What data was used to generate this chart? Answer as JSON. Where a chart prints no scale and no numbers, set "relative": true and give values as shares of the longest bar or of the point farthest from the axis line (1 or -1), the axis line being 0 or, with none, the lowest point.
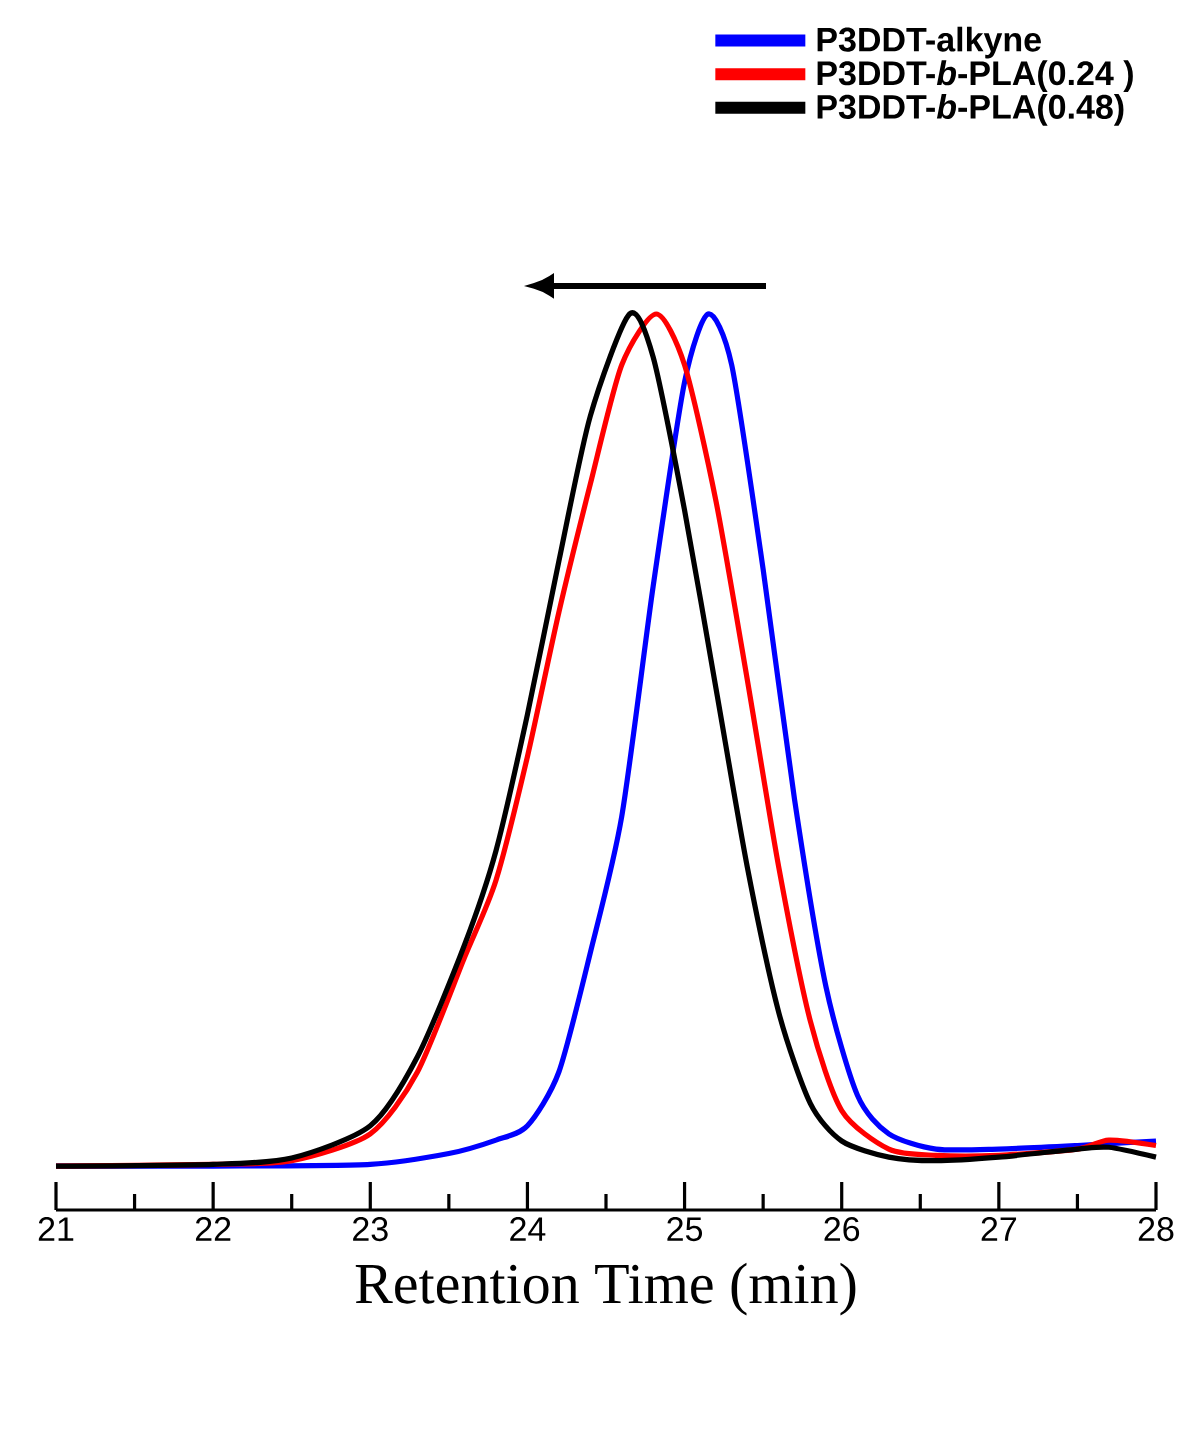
{
  "chart_data": {
    "type": "line",
    "xlabel": "Retention Time (min)",
    "relative": true,
    "legend": "top right",
    "xlim": [
      21,
      28
    ],
    "xticks": [
      21,
      22,
      23,
      24,
      25,
      26,
      27,
      28
    ],
    "series": [
      {
        "name": "P3DDT-alkyne",
        "color": "#0000ff",
        "x": [
          21,
          22,
          23,
          23.5,
          23.8,
          24.0,
          24.2,
          24.4,
          24.6,
          24.8,
          25.0,
          25.15,
          25.3,
          25.5,
          25.7,
          25.9,
          26.1,
          26.3,
          26.6,
          27,
          27.5,
          28
        ],
        "values": [
          0.049,
          0.049,
          0.051,
          0.063,
          0.078,
          0.094,
          0.154,
          0.287,
          0.439,
          0.696,
          0.924,
          1,
          0.943,
          0.715,
          0.458,
          0.249,
          0.128,
          0.085,
          0.068,
          0.068,
          0.072,
          0.077
        ]
      },
      {
        "name": "P3DDT-*b*-PLA(0.24 )",
        "color": "#ff0000",
        "x": [
          21,
          22,
          22.5,
          23,
          23.3,
          23.6,
          23.8,
          24.0,
          24.2,
          24.4,
          24.6,
          24.82,
          25.0,
          25.2,
          25.4,
          25.6,
          25.8,
          26.0,
          26.3,
          26.6,
          27,
          27.5,
          27.7,
          28
        ],
        "values": [
          0.049,
          0.051,
          0.055,
          0.085,
          0.154,
          0.282,
          0.368,
          0.506,
          0.667,
          0.81,
          0.943,
          1,
          0.943,
          0.791,
          0.591,
          0.382,
          0.211,
          0.111,
          0.068,
          0.061,
          0.061,
          0.068,
          0.078,
          0.072
        ]
      },
      {
        "name": "P3DDT-*b*-PLA(0.48)",
        "color": "#000000",
        "x": [
          21,
          22,
          22.5,
          23,
          23.3,
          23.6,
          23.8,
          24.0,
          24.2,
          24.4,
          24.65,
          24.8,
          25.0,
          25.2,
          25.4,
          25.6,
          25.8,
          26.0,
          26.3,
          26.6,
          27,
          27.5,
          27.7,
          28
        ],
        "values": [
          0.049,
          0.051,
          0.058,
          0.094,
          0.171,
          0.296,
          0.401,
          0.553,
          0.724,
          0.886,
          1,
          0.952,
          0.781,
          0.582,
          0.382,
          0.22,
          0.119,
          0.077,
          0.059,
          0.055,
          0.059,
          0.068,
          0.07,
          0.059
        ]
      }
    ]
  }
}
